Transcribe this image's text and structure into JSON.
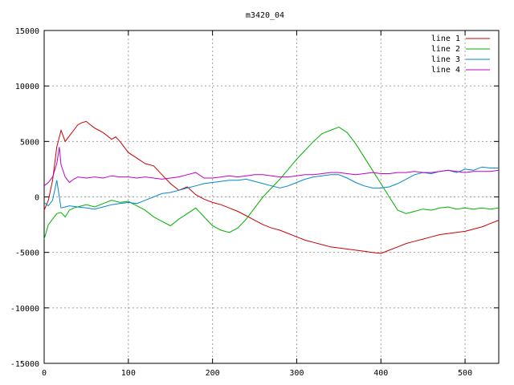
{
  "chart_data": {
    "type": "line",
    "title": "m3420_04",
    "xlabel": "",
    "ylabel": "",
    "xlim": [
      0,
      540
    ],
    "ylim": [
      -15000,
      15000
    ],
    "xticks": [
      0,
      100,
      200,
      300,
      400,
      500
    ],
    "yticks": [
      -15000,
      -10000,
      -5000,
      0,
      5000,
      10000,
      15000
    ],
    "grid": true,
    "legend_position": "top-right",
    "series": [
      {
        "name": "line 1",
        "color": "#cc0000",
        "points": [
          [
            0,
            -1200
          ],
          [
            5,
            -300
          ],
          [
            10,
            1500
          ],
          [
            15,
            4500
          ],
          [
            20,
            6000
          ],
          [
            25,
            5000
          ],
          [
            30,
            5500
          ],
          [
            35,
            6000
          ],
          [
            40,
            6500
          ],
          [
            45,
            6700
          ],
          [
            50,
            6800
          ],
          [
            55,
            6500
          ],
          [
            60,
            6200
          ],
          [
            65,
            6000
          ],
          [
            70,
            5800
          ],
          [
            75,
            5500
          ],
          [
            80,
            5200
          ],
          [
            85,
            5400
          ],
          [
            90,
            5000
          ],
          [
            95,
            4500
          ],
          [
            100,
            4000
          ],
          [
            110,
            3500
          ],
          [
            120,
            3000
          ],
          [
            130,
            2800
          ],
          [
            140,
            2000
          ],
          [
            150,
            1200
          ],
          [
            160,
            600
          ],
          [
            170,
            900
          ],
          [
            180,
            200
          ],
          [
            190,
            -200
          ],
          [
            200,
            -500
          ],
          [
            210,
            -700
          ],
          [
            220,
            -1000
          ],
          [
            230,
            -1300
          ],
          [
            240,
            -1700
          ],
          [
            250,
            -2100
          ],
          [
            260,
            -2500
          ],
          [
            270,
            -2800
          ],
          [
            280,
            -3000
          ],
          [
            290,
            -3300
          ],
          [
            300,
            -3600
          ],
          [
            310,
            -3900
          ],
          [
            320,
            -4100
          ],
          [
            330,
            -4300
          ],
          [
            340,
            -4500
          ],
          [
            350,
            -4600
          ],
          [
            360,
            -4700
          ],
          [
            370,
            -4800
          ],
          [
            380,
            -4900
          ],
          [
            390,
            -5000
          ],
          [
            400,
            -5100
          ],
          [
            410,
            -4800
          ],
          [
            420,
            -4500
          ],
          [
            430,
            -4200
          ],
          [
            440,
            -4000
          ],
          [
            450,
            -3800
          ],
          [
            460,
            -3600
          ],
          [
            470,
            -3400
          ],
          [
            480,
            -3300
          ],
          [
            490,
            -3200
          ],
          [
            500,
            -3100
          ],
          [
            510,
            -2900
          ],
          [
            520,
            -2700
          ],
          [
            530,
            -2400
          ],
          [
            540,
            -2100
          ]
        ]
      },
      {
        "name": "line 2",
        "color": "#00b000",
        "points": [
          [
            0,
            -3800
          ],
          [
            5,
            -2500
          ],
          [
            10,
            -2000
          ],
          [
            15,
            -1500
          ],
          [
            20,
            -1400
          ],
          [
            25,
            -1800
          ],
          [
            30,
            -1200
          ],
          [
            35,
            -1000
          ],
          [
            40,
            -900
          ],
          [
            50,
            -700
          ],
          [
            60,
            -900
          ],
          [
            70,
            -600
          ],
          [
            80,
            -300
          ],
          [
            90,
            -500
          ],
          [
            100,
            -400
          ],
          [
            110,
            -800
          ],
          [
            120,
            -1200
          ],
          [
            130,
            -1800
          ],
          [
            140,
            -2200
          ],
          [
            150,
            -2600
          ],
          [
            160,
            -2000
          ],
          [
            170,
            -1500
          ],
          [
            180,
            -1000
          ],
          [
            190,
            -1800
          ],
          [
            200,
            -2600
          ],
          [
            210,
            -3000
          ],
          [
            220,
            -3200
          ],
          [
            230,
            -2800
          ],
          [
            240,
            -2000
          ],
          [
            250,
            -1000
          ],
          [
            260,
            0
          ],
          [
            270,
            800
          ],
          [
            280,
            1600
          ],
          [
            290,
            2500
          ],
          [
            300,
            3400
          ],
          [
            310,
            4200
          ],
          [
            320,
            5000
          ],
          [
            330,
            5700
          ],
          [
            340,
            6000
          ],
          [
            350,
            6300
          ],
          [
            360,
            5800
          ],
          [
            370,
            4800
          ],
          [
            380,
            3600
          ],
          [
            390,
            2400
          ],
          [
            400,
            1200
          ],
          [
            410,
            0
          ],
          [
            420,
            -1200
          ],
          [
            430,
            -1500
          ],
          [
            440,
            -1300
          ],
          [
            450,
            -1100
          ],
          [
            460,
            -1200
          ],
          [
            470,
            -1000
          ],
          [
            480,
            -900
          ],
          [
            490,
            -1100
          ],
          [
            500,
            -1000
          ],
          [
            510,
            -1100
          ],
          [
            520,
            -1000
          ],
          [
            530,
            -1100
          ],
          [
            540,
            -1000
          ]
        ]
      },
      {
        "name": "line 3",
        "color": "#0088cc",
        "points": [
          [
            0,
            -500
          ],
          [
            5,
            -800
          ],
          [
            10,
            -300
          ],
          [
            15,
            1500
          ],
          [
            20,
            -1000
          ],
          [
            25,
            -900
          ],
          [
            30,
            -800
          ],
          [
            40,
            -900
          ],
          [
            50,
            -1000
          ],
          [
            60,
            -1100
          ],
          [
            70,
            -900
          ],
          [
            80,
            -700
          ],
          [
            90,
            -600
          ],
          [
            100,
            -500
          ],
          [
            110,
            -600
          ],
          [
            120,
            -300
          ],
          [
            130,
            0
          ],
          [
            140,
            300
          ],
          [
            150,
            400
          ],
          [
            160,
            600
          ],
          [
            170,
            800
          ],
          [
            180,
            1000
          ],
          [
            190,
            1200
          ],
          [
            200,
            1300
          ],
          [
            210,
            1400
          ],
          [
            220,
            1500
          ],
          [
            230,
            1500
          ],
          [
            240,
            1600
          ],
          [
            250,
            1400
          ],
          [
            260,
            1200
          ],
          [
            270,
            1000
          ],
          [
            280,
            800
          ],
          [
            290,
            1000
          ],
          [
            300,
            1300
          ],
          [
            310,
            1600
          ],
          [
            320,
            1800
          ],
          [
            330,
            1900
          ],
          [
            340,
            2000
          ],
          [
            350,
            2000
          ],
          [
            360,
            1700
          ],
          [
            370,
            1300
          ],
          [
            380,
            1000
          ],
          [
            390,
            800
          ],
          [
            400,
            800
          ],
          [
            410,
            900
          ],
          [
            420,
            1200
          ],
          [
            430,
            1600
          ],
          [
            440,
            2000
          ],
          [
            450,
            2200
          ],
          [
            460,
            2100
          ],
          [
            470,
            2300
          ],
          [
            480,
            2400
          ],
          [
            490,
            2200
          ],
          [
            500,
            2500
          ],
          [
            510,
            2400
          ],
          [
            520,
            2700
          ],
          [
            530,
            2600
          ],
          [
            540,
            2600
          ]
        ]
      },
      {
        "name": "line 4",
        "color": "#c000c0",
        "points": [
          [
            0,
            1000
          ],
          [
            5,
            1300
          ],
          [
            10,
            1800
          ],
          [
            15,
            3000
          ],
          [
            18,
            4500
          ],
          [
            20,
            2900
          ],
          [
            25,
            1800
          ],
          [
            30,
            1300
          ],
          [
            35,
            1600
          ],
          [
            40,
            1800
          ],
          [
            50,
            1700
          ],
          [
            60,
            1800
          ],
          [
            70,
            1700
          ],
          [
            80,
            1900
          ],
          [
            90,
            1800
          ],
          [
            100,
            1800
          ],
          [
            110,
            1700
          ],
          [
            120,
            1800
          ],
          [
            130,
            1700
          ],
          [
            140,
            1600
          ],
          [
            150,
            1700
          ],
          [
            160,
            1800
          ],
          [
            170,
            2000
          ],
          [
            180,
            2200
          ],
          [
            190,
            1700
          ],
          [
            200,
            1700
          ],
          [
            210,
            1800
          ],
          [
            220,
            1900
          ],
          [
            230,
            1800
          ],
          [
            240,
            1900
          ],
          [
            250,
            2000
          ],
          [
            260,
            2000
          ],
          [
            270,
            1900
          ],
          [
            280,
            1800
          ],
          [
            290,
            1800
          ],
          [
            300,
            1900
          ],
          [
            310,
            2000
          ],
          [
            320,
            2000
          ],
          [
            330,
            2100
          ],
          [
            340,
            2200
          ],
          [
            350,
            2200
          ],
          [
            360,
            2100
          ],
          [
            370,
            2000
          ],
          [
            380,
            2100
          ],
          [
            390,
            2200
          ],
          [
            400,
            2100
          ],
          [
            410,
            2100
          ],
          [
            420,
            2200
          ],
          [
            430,
            2200
          ],
          [
            440,
            2300
          ],
          [
            450,
            2200
          ],
          [
            460,
            2200
          ],
          [
            470,
            2300
          ],
          [
            480,
            2400
          ],
          [
            490,
            2300
          ],
          [
            500,
            2200
          ],
          [
            510,
            2300
          ],
          [
            520,
            2300
          ],
          [
            530,
            2300
          ],
          [
            540,
            2400
          ]
        ]
      }
    ]
  }
}
